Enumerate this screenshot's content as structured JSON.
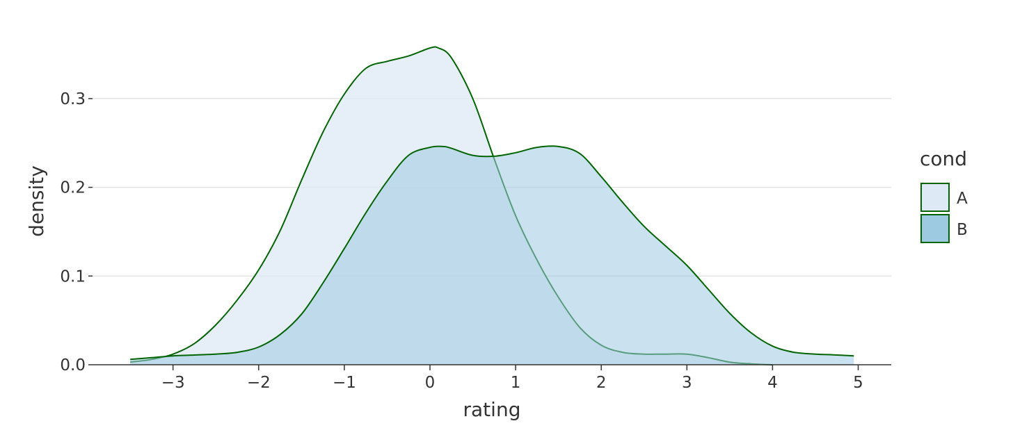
{
  "chart_data": {
    "type": "area",
    "xlabel": "rating",
    "ylabel": "density",
    "xlim": [
      -3.9,
      5.4
    ],
    "ylim": [
      0,
      0.36
    ],
    "x_ticks": [
      -3,
      -2,
      -1,
      0,
      1,
      2,
      3,
      4,
      5
    ],
    "x_tick_labels": [
      "−3",
      "−2",
      "−1",
      "0",
      "1",
      "2",
      "3",
      "4",
      "5"
    ],
    "y_ticks": [
      0.0,
      0.1,
      0.2,
      0.3
    ],
    "y_tick_labels": [
      "0.0",
      "0.1",
      "0.2",
      "0.3"
    ],
    "grid": "horizontal",
    "legend": {
      "title": "cond",
      "position": "right"
    },
    "series": [
      {
        "name": "A",
        "fill": "#dde9f4",
        "stroke": "#006400",
        "x": [
          -3.5,
          -3.25,
          -3.0,
          -2.75,
          -2.5,
          -2.25,
          -2.0,
          -1.75,
          -1.5,
          -1.25,
          -1.0,
          -0.75,
          -0.5,
          -0.25,
          0.0,
          0.1,
          0.25,
          0.5,
          0.75,
          1.0,
          1.25,
          1.5,
          1.75,
          2.0,
          2.25,
          2.5,
          2.75,
          3.0,
          3.25,
          3.5,
          3.75,
          4.0
        ],
        "y": [
          0.003,
          0.006,
          0.012,
          0.024,
          0.045,
          0.073,
          0.107,
          0.151,
          0.208,
          0.262,
          0.305,
          0.334,
          0.342,
          0.348,
          0.357,
          0.357,
          0.346,
          0.3,
          0.232,
          0.168,
          0.118,
          0.076,
          0.042,
          0.022,
          0.014,
          0.012,
          0.012,
          0.012,
          0.008,
          0.003,
          0.001,
          0.0
        ]
      },
      {
        "name": "B",
        "fill": "#9ecae1",
        "stroke": "#006400",
        "x": [
          -3.5,
          -3.25,
          -3.0,
          -2.75,
          -2.5,
          -2.25,
          -2.0,
          -1.75,
          -1.5,
          -1.25,
          -1.0,
          -0.75,
          -0.5,
          -0.25,
          0.0,
          0.15,
          0.25,
          0.5,
          0.75,
          1.0,
          1.25,
          1.5,
          1.75,
          2.0,
          2.25,
          2.5,
          2.75,
          3.0,
          3.25,
          3.5,
          3.75,
          4.0,
          4.25,
          4.5,
          4.75,
          4.95
        ],
        "y": [
          0.006,
          0.008,
          0.01,
          0.011,
          0.012,
          0.014,
          0.02,
          0.034,
          0.057,
          0.092,
          0.131,
          0.171,
          0.207,
          0.236,
          0.245,
          0.246,
          0.244,
          0.236,
          0.235,
          0.239,
          0.245,
          0.246,
          0.238,
          0.212,
          0.183,
          0.156,
          0.134,
          0.112,
          0.085,
          0.058,
          0.036,
          0.021,
          0.014,
          0.012,
          0.011,
          0.01
        ]
      }
    ]
  }
}
